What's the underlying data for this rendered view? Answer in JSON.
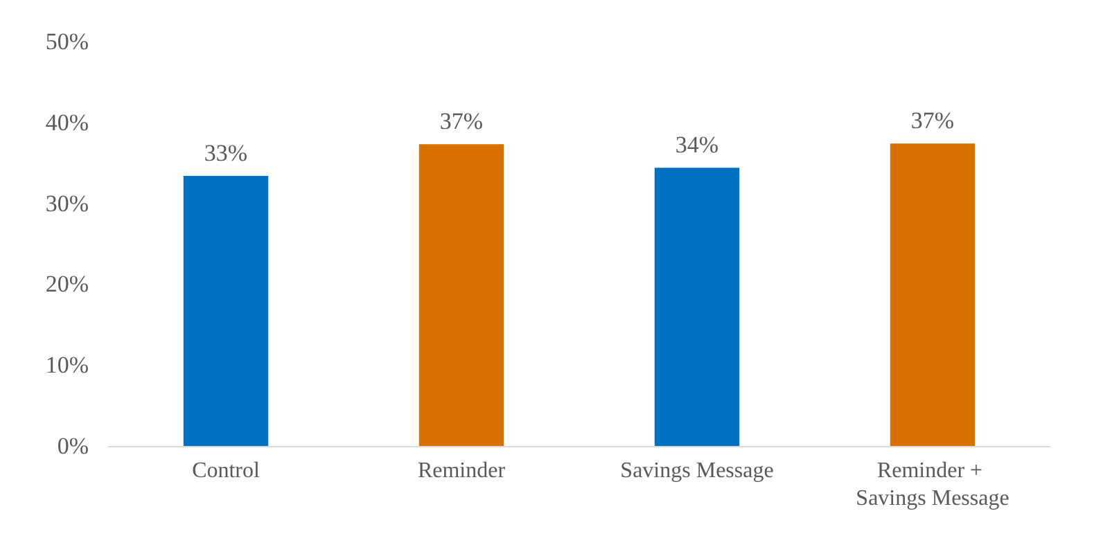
{
  "chart_data": {
    "type": "bar",
    "categories": [
      "Control",
      "Reminder",
      "Savings Message",
      "Reminder + Savings Message"
    ],
    "values": [
      33.4,
      37.3,
      34.4,
      37.4
    ],
    "colors": [
      "#0070c0",
      "#d97100",
      "#0070c0",
      "#d97100"
    ],
    "value_labels": [
      "33%",
      "37%",
      "34%",
      "37%"
    ],
    "ylim": [
      0,
      50
    ],
    "yticks": [
      {
        "value": 0,
        "label": "0%"
      },
      {
        "value": 10,
        "label": "10%"
      },
      {
        "value": 20,
        "label": "20%"
      },
      {
        "value": 30,
        "label": "30%"
      },
      {
        "value": 40,
        "label": "40%"
      },
      {
        "value": 50,
        "label": "50%"
      }
    ],
    "grid": false
  }
}
